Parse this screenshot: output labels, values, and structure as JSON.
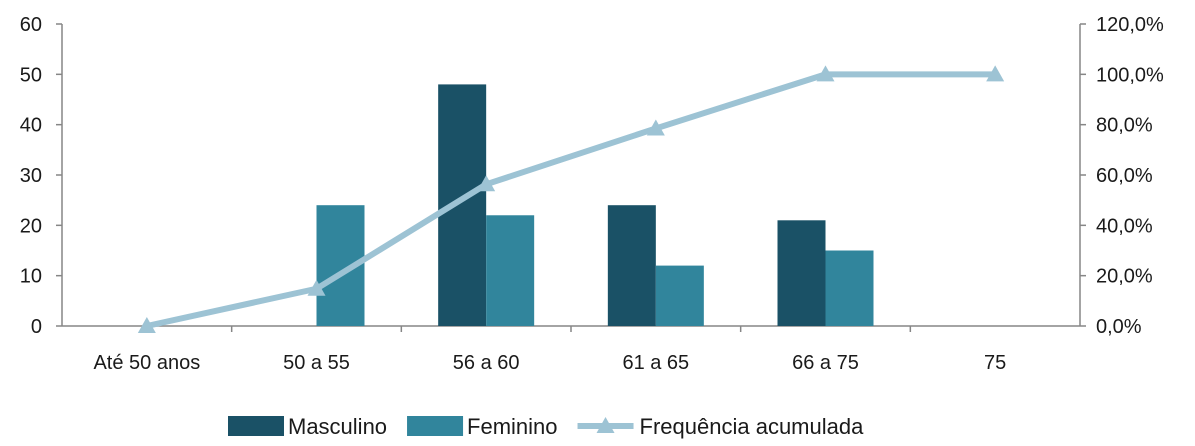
{
  "chart_data": {
    "type": "bar",
    "categories": [
      "Até 50 anos",
      "50 a 55",
      "56 a 60",
      "61 a 65",
      "66 a 75",
      "75"
    ],
    "series": [
      {
        "name": "Masculino",
        "type": "bar",
        "axis": "left",
        "color": "#1a5166",
        "values": [
          0,
          0,
          48,
          24,
          21,
          0
        ]
      },
      {
        "name": "Feminino",
        "type": "bar",
        "axis": "left",
        "color": "#31859c",
        "values": [
          0,
          24,
          22,
          12,
          15,
          0
        ]
      },
      {
        "name": "Frequência acumulada",
        "type": "line",
        "axis": "right",
        "color": "#9dc3d4",
        "marker": "triangle",
        "values": [
          0.0,
          14.8,
          56.3,
          78.5,
          100.0,
          100.0
        ]
      }
    ],
    "y_left": {
      "min": 0,
      "max": 60,
      "ticks": [
        0,
        10,
        20,
        30,
        40,
        50,
        60
      ],
      "tick_labels": [
        "0",
        "10",
        "20",
        "30",
        "40",
        "50",
        "60"
      ]
    },
    "y_right": {
      "min": 0,
      "max": 120,
      "ticks": [
        0,
        20,
        40,
        60,
        80,
        100,
        120
      ],
      "tick_labels": [
        "0,0%",
        "20,0%",
        "40,0%",
        "60,0%",
        "80,0%",
        "100,0%",
        "120,0%"
      ]
    },
    "grid": false,
    "legend": {
      "position": "bottom"
    },
    "axis_color": "#868686"
  }
}
